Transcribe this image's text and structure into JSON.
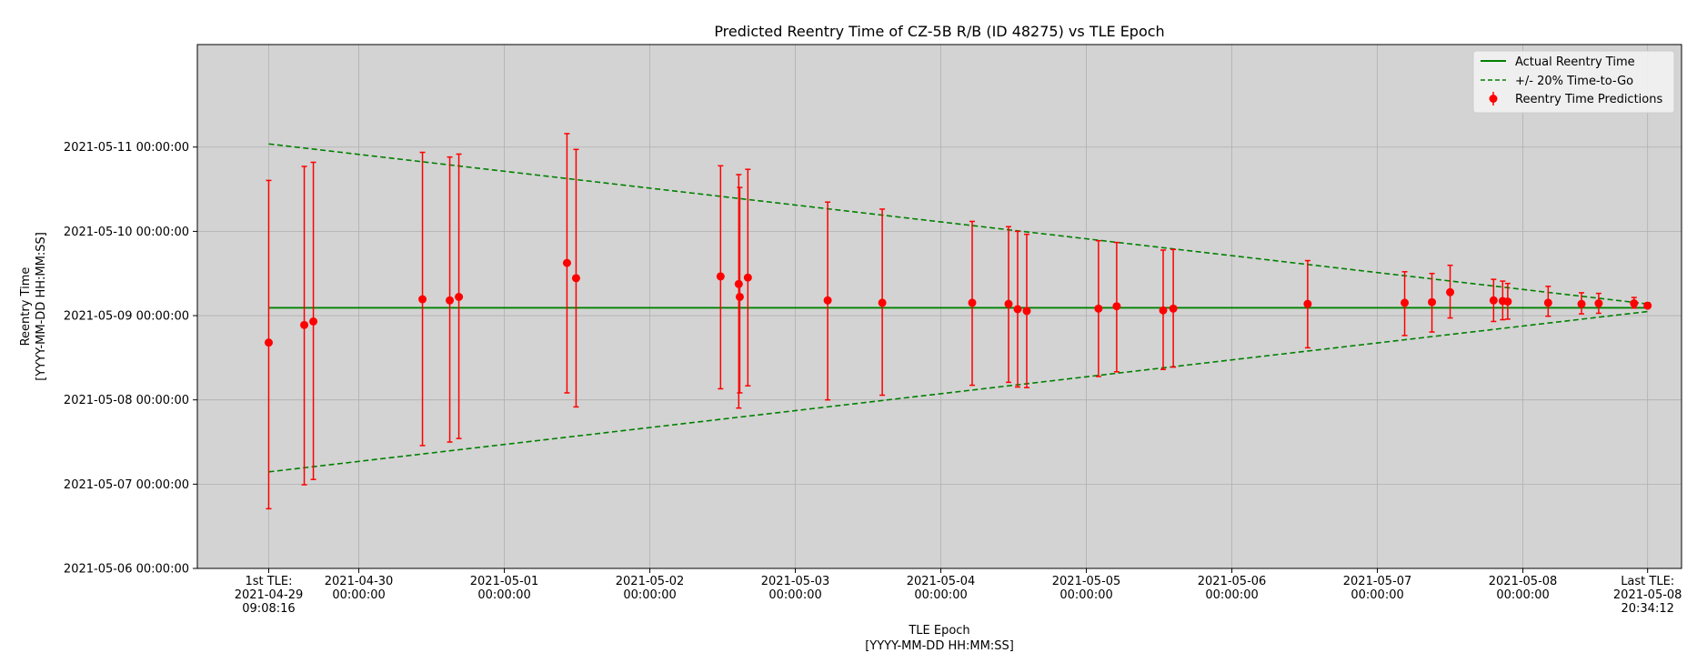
{
  "chart_data": {
    "type": "scatter",
    "title": "Predicted Reentry Time of CZ-5B R/B (ID 48275) vs TLE Epoch",
    "xlabel": [
      "TLE Epoch",
      "[YYYY-MM-DD HH:MM:SS]"
    ],
    "ylabel": [
      "Reentry Time",
      "[YYYY-MM-DD HH:MM:SS]"
    ],
    "xlim": [
      "2021-04-28T21:22:00",
      "2021-05-09T02:10:00"
    ],
    "ylim": [
      "2021-05-06T00:00:00",
      "2021-05-12T05:12:00"
    ],
    "grid": true,
    "background": "#d3d3d3",
    "x_ticks": [
      {
        "value": "2021-04-29T09:08:16",
        "lines": [
          "1st TLE:",
          "2021-04-29",
          "09:08:16"
        ]
      },
      {
        "value": "2021-04-30T00:00:00",
        "lines": [
          "2021-04-30",
          "00:00:00"
        ]
      },
      {
        "value": "2021-05-01T00:00:00",
        "lines": [
          "2021-05-01",
          "00:00:00"
        ]
      },
      {
        "value": "2021-05-02T00:00:00",
        "lines": [
          "2021-05-02",
          "00:00:00"
        ]
      },
      {
        "value": "2021-05-03T00:00:00",
        "lines": [
          "2021-05-03",
          "00:00:00"
        ]
      },
      {
        "value": "2021-05-04T00:00:00",
        "lines": [
          "2021-05-04",
          "00:00:00"
        ]
      },
      {
        "value": "2021-05-05T00:00:00",
        "lines": [
          "2021-05-05",
          "00:00:00"
        ]
      },
      {
        "value": "2021-05-06T00:00:00",
        "lines": [
          "2021-05-06",
          "00:00:00"
        ]
      },
      {
        "value": "2021-05-07T00:00:00",
        "lines": [
          "2021-05-07",
          "00:00:00"
        ]
      },
      {
        "value": "2021-05-08T00:00:00",
        "lines": [
          "2021-05-08",
          "00:00:00"
        ]
      },
      {
        "value": "2021-05-08T20:34:12",
        "lines": [
          "Last TLE:",
          "2021-05-08",
          "20:34:12"
        ]
      }
    ],
    "y_ticks": [
      {
        "value": "2021-05-06T00:00:00",
        "label": "2021-05-06 00:00:00"
      },
      {
        "value": "2021-05-07T00:00:00",
        "label": "2021-05-07 00:00:00"
      },
      {
        "value": "2021-05-08T00:00:00",
        "label": "2021-05-08 00:00:00"
      },
      {
        "value": "2021-05-09T00:00:00",
        "label": "2021-05-09 00:00:00"
      },
      {
        "value": "2021-05-10T00:00:00",
        "label": "2021-05-10 00:00:00"
      },
      {
        "value": "2021-05-11T00:00:00",
        "label": "2021-05-11 00:00:00"
      }
    ],
    "actual_reentry": {
      "name": "Actual Reentry Time",
      "value": "2021-05-09T02:14:00",
      "x_range": [
        "2021-04-29T09:08:16",
        "2021-05-08T20:34:12"
      ],
      "color": "#008000"
    },
    "band": {
      "name": "+/- 20% Time-to-Go",
      "color": "#008000",
      "upper": [
        [
          "2021-04-29T09:08:16",
          "2021-05-11T00:54:00"
        ],
        [
          "2021-05-08T20:34:12",
          "2021-05-09T03:20:00"
        ]
      ],
      "lower": [
        [
          "2021-04-29T09:08:16",
          "2021-05-07T03:30:00"
        ],
        [
          "2021-05-08T20:34:12",
          "2021-05-09T01:10:00"
        ]
      ]
    },
    "predictions": {
      "name": "Reentry Time Predictions",
      "color": "#ff0000",
      "points": [
        {
          "x": "2021-04-29T09:08:16",
          "y": "2021-05-08T16:20:00",
          "lo": "2021-05-06T17:00:00",
          "hi": "2021-05-10T14:30:00"
        },
        {
          "x": "2021-04-29T15:00:00",
          "y": "2021-05-08T21:20:00",
          "lo": "2021-05-06T23:50:00",
          "hi": "2021-05-10T18:30:00"
        },
        {
          "x": "2021-04-29T16:30:00",
          "y": "2021-05-08T22:20:00",
          "lo": "2021-05-07T01:20:00",
          "hi": "2021-05-10T19:40:00"
        },
        {
          "x": "2021-04-30T10:30:00",
          "y": "2021-05-09T04:40:00",
          "lo": "2021-05-07T11:00:00",
          "hi": "2021-05-10T22:30:00"
        },
        {
          "x": "2021-04-30T15:00:00",
          "y": "2021-05-09T04:20:00",
          "lo": "2021-05-07T12:00:00",
          "hi": "2021-05-10T21:10:00"
        },
        {
          "x": "2021-04-30T16:30:00",
          "y": "2021-05-09T05:20:00",
          "lo": "2021-05-07T13:00:00",
          "hi": "2021-05-10T22:00:00"
        },
        {
          "x": "2021-05-01T10:20:00",
          "y": "2021-05-09T15:00:00",
          "lo": "2021-05-08T02:00:00",
          "hi": "2021-05-11T03:50:00"
        },
        {
          "x": "2021-05-01T11:50:00",
          "y": "2021-05-09T10:40:00",
          "lo": "2021-05-07T22:00:00",
          "hi": "2021-05-10T23:20:00"
        },
        {
          "x": "2021-05-02T11:40:00",
          "y": "2021-05-09T11:10:00",
          "lo": "2021-05-08T03:10:00",
          "hi": "2021-05-10T18:40:00"
        },
        {
          "x": "2021-05-02T14:40:00",
          "y": "2021-05-09T09:00:00",
          "lo": "2021-05-07T21:40:00",
          "hi": "2021-05-10T16:10:00"
        },
        {
          "x": "2021-05-02T14:50:00",
          "y": "2021-05-09T05:20:00",
          "lo": "2021-05-08T02:00:00",
          "hi": "2021-05-10T12:30:00"
        },
        {
          "x": "2021-05-02T16:10:00",
          "y": "2021-05-09T10:50:00",
          "lo": "2021-05-08T04:00:00",
          "hi": "2021-05-10T17:40:00"
        },
        {
          "x": "2021-05-03T05:20:00",
          "y": "2021-05-09T04:20:00",
          "lo": "2021-05-08T00:00:00",
          "hi": "2021-05-10T08:20:00"
        },
        {
          "x": "2021-05-03T14:20:00",
          "y": "2021-05-09T03:40:00",
          "lo": "2021-05-08T01:20:00",
          "hi": "2021-05-10T06:20:00"
        },
        {
          "x": "2021-05-04T05:10:00",
          "y": "2021-05-09T03:40:00",
          "lo": "2021-05-08T04:10:00",
          "hi": "2021-05-10T02:50:00"
        },
        {
          "x": "2021-05-04T11:10:00",
          "y": "2021-05-09T03:20:00",
          "lo": "2021-05-08T05:00:00",
          "hi": "2021-05-10T01:20:00"
        },
        {
          "x": "2021-05-04T12:40:00",
          "y": "2021-05-09T01:50:00",
          "lo": "2021-05-08T03:40:00",
          "hi": "2021-05-10T00:00:00"
        },
        {
          "x": "2021-05-04T14:10:00",
          "y": "2021-05-09T01:20:00",
          "lo": "2021-05-08T03:30:00",
          "hi": "2021-05-09T23:10:00"
        },
        {
          "x": "2021-05-05T02:00:00",
          "y": "2021-05-09T02:00:00",
          "lo": "2021-05-08T06:40:00",
          "hi": "2021-05-09T21:20:00"
        },
        {
          "x": "2021-05-05T05:00:00",
          "y": "2021-05-09T02:40:00",
          "lo": "2021-05-08T08:00:00",
          "hi": "2021-05-09T20:50:00"
        },
        {
          "x": "2021-05-05T12:40:00",
          "y": "2021-05-09T01:30:00",
          "lo": "2021-05-08T08:40:00",
          "hi": "2021-05-09T18:40:00"
        },
        {
          "x": "2021-05-05T14:20:00",
          "y": "2021-05-09T02:00:00",
          "lo": "2021-05-08T09:20:00",
          "hi": "2021-05-09T18:50:00"
        },
        {
          "x": "2021-05-06T12:30:00",
          "y": "2021-05-09T03:20:00",
          "lo": "2021-05-08T14:50:00",
          "hi": "2021-05-09T15:40:00"
        },
        {
          "x": "2021-05-07T04:30:00",
          "y": "2021-05-09T03:40:00",
          "lo": "2021-05-08T18:20:00",
          "hi": "2021-05-09T12:30:00"
        },
        {
          "x": "2021-05-07T09:00:00",
          "y": "2021-05-09T03:50:00",
          "lo": "2021-05-08T19:20:00",
          "hi": "2021-05-09T12:00:00"
        },
        {
          "x": "2021-05-07T12:00:00",
          "y": "2021-05-09T06:40:00",
          "lo": "2021-05-08T23:20:00",
          "hi": "2021-05-09T14:20:00"
        },
        {
          "x": "2021-05-07T19:10:00",
          "y": "2021-05-09T04:20:00",
          "lo": "2021-05-08T22:20:00",
          "hi": "2021-05-09T10:20:00"
        },
        {
          "x": "2021-05-07T20:40:00",
          "y": "2021-05-09T04:10:00",
          "lo": "2021-05-08T22:50:00",
          "hi": "2021-05-09T09:50:00"
        },
        {
          "x": "2021-05-07T21:30:00",
          "y": "2021-05-09T04:00:00",
          "lo": "2021-05-08T23:00:00",
          "hi": "2021-05-09T09:10:00"
        },
        {
          "x": "2021-05-08T04:10:00",
          "y": "2021-05-09T03:40:00",
          "lo": "2021-05-08T23:50:00",
          "hi": "2021-05-09T08:20:00"
        },
        {
          "x": "2021-05-08T09:40:00",
          "y": "2021-05-09T03:20:00",
          "lo": "2021-05-09T00:30:00",
          "hi": "2021-05-09T06:30:00"
        },
        {
          "x": "2021-05-08T12:30:00",
          "y": "2021-05-09T03:30:00",
          "lo": "2021-05-09T00:40:00",
          "hi": "2021-05-09T06:20:00"
        },
        {
          "x": "2021-05-08T18:20:00",
          "y": "2021-05-09T03:30:00",
          "lo": "2021-05-09T02:10:00",
          "hi": "2021-05-09T05:10:00"
        },
        {
          "x": "2021-05-08T20:34:12",
          "y": "2021-05-09T02:50:00",
          "lo": "2021-05-09T02:10:00",
          "hi": "2021-05-09T03:40:00"
        }
      ]
    },
    "legend": {
      "position": "top-right",
      "entries": [
        "Actual Reentry Time",
        "+/- 20% Time-to-Go",
        "Reentry Time Predictions"
      ]
    }
  }
}
